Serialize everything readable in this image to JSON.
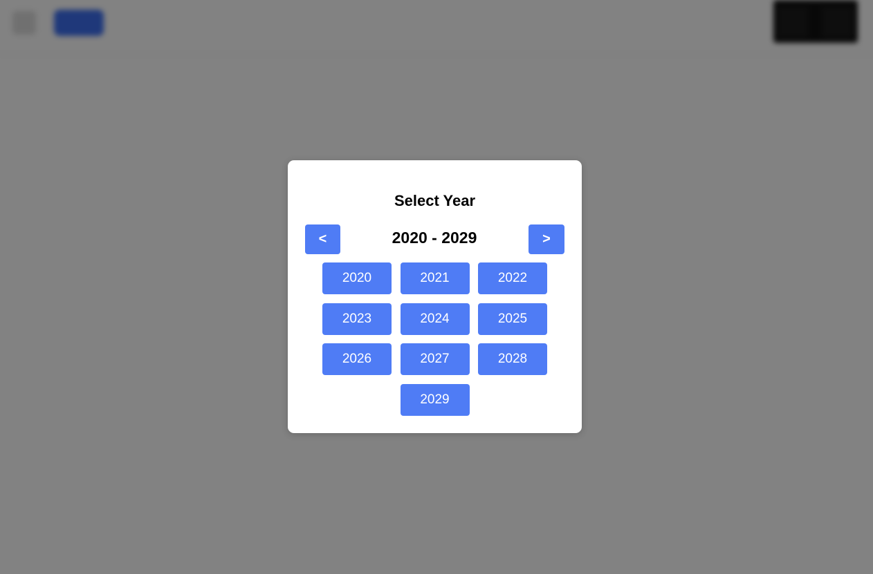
{
  "modal": {
    "title": "Select Year",
    "prev_label": "<",
    "next_label": ">",
    "decade_range": "2020 - 2029",
    "years": [
      "2020",
      "2021",
      "2022",
      "2023",
      "2024",
      "2025",
      "2026",
      "2027",
      "2028",
      "2029"
    ]
  },
  "colors": {
    "accent": "#4f7cf5",
    "overlay": "rgba(0,0,0,0.49)"
  },
  "icons": {
    "background_menu": "menu-icon"
  }
}
